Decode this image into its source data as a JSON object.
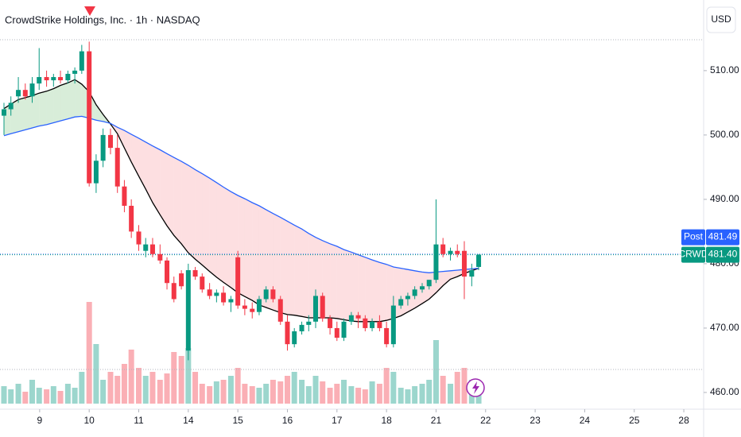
{
  "chart_data": {
    "type": "candlestick",
    "title": "CrowdStrike Holdings, Inc. · 1h · NASDAQ",
    "currency": "USD",
    "xlim": [
      -0.8,
      13.4
    ],
    "ylim": [
      457.4,
      514.8
    ],
    "xticks": [
      {
        "value": 0,
        "label": "9"
      },
      {
        "value": 1,
        "label": "10"
      },
      {
        "value": 2,
        "label": "11"
      },
      {
        "value": 3,
        "label": "14"
      },
      {
        "value": 4,
        "label": "15"
      },
      {
        "value": 5,
        "label": "16"
      },
      {
        "value": 6,
        "label": "17"
      },
      {
        "value": 7,
        "label": "18"
      },
      {
        "value": 8,
        "label": "21"
      },
      {
        "value": 9,
        "label": "22"
      },
      {
        "value": 10,
        "label": "23"
      },
      {
        "value": 11,
        "label": "24"
      },
      {
        "value": 12,
        "label": "25"
      },
      {
        "value": 13,
        "label": "28"
      }
    ],
    "yticks": [
      {
        "value": 460,
        "label": "460.00"
      },
      {
        "value": 470,
        "label": "470.00"
      },
      {
        "value": 480,
        "label": "480.00"
      },
      {
        "value": 490,
        "label": "490.00"
      },
      {
        "value": 500,
        "label": "500.00"
      },
      {
        "value": 510,
        "label": "510.00"
      }
    ],
    "up_color": "#089981",
    "down_color": "#f23645",
    "candles": {
      "t": [
        -0.72,
        -0.58,
        -0.43,
        -0.29,
        -0.15,
        -0.01,
        0.14,
        0.28,
        0.42,
        0.57,
        0.71,
        0.85,
        1.0,
        1.14,
        1.28,
        1.43,
        1.57,
        1.71,
        1.85,
        2.0,
        2.14,
        2.28,
        2.43,
        2.57,
        2.71,
        2.86,
        3.0,
        3.14,
        3.28,
        3.43,
        3.57,
        3.71,
        3.86,
        4.0,
        4.14,
        4.29,
        4.43,
        4.57,
        4.71,
        4.86,
        5.0,
        5.14,
        5.29,
        5.43,
        5.57,
        5.71,
        5.86,
        6.0,
        6.14,
        6.29,
        6.43,
        6.57,
        6.71,
        6.86,
        7.0,
        7.14,
        7.29,
        7.43,
        7.57,
        7.72,
        7.86,
        8.0,
        8.14,
        8.29,
        8.43,
        8.57,
        8.72,
        8.86
      ],
      "open": [
        503,
        504,
        506,
        507,
        506,
        508,
        509,
        508.5,
        509,
        508.5,
        509.5,
        510,
        513,
        492.5,
        496,
        500,
        498,
        492,
        489,
        485,
        482,
        483,
        481.5,
        480.5,
        477,
        478.5,
        466.5,
        479,
        478,
        476,
        475,
        475.5,
        474,
        481,
        473.5,
        473,
        472.5,
        474.5,
        476,
        474.5,
        471,
        467.5,
        469.5,
        470.5,
        471,
        475,
        471.5,
        470,
        468.5,
        471,
        472,
        471.5,
        470,
        471,
        470,
        467.5,
        473.5,
        474.5,
        475,
        476,
        476.5,
        477.5,
        483,
        481.5,
        482,
        482,
        478,
        479.5
      ],
      "high": [
        505,
        506,
        509,
        508,
        509,
        513.5,
        510,
        509.5,
        510,
        510,
        510.5,
        514,
        514.5,
        497,
        501,
        501,
        500,
        493,
        490,
        486,
        484,
        484,
        483,
        481,
        478,
        479,
        480,
        479.5,
        478.5,
        477,
        476,
        476.5,
        475,
        482,
        474.5,
        474,
        475,
        476.5,
        476.5,
        475,
        472,
        470,
        471,
        472,
        476,
        475.5,
        472,
        471,
        471.5,
        472.5,
        472.5,
        472,
        471.5,
        472,
        471,
        475,
        475,
        475.5,
        476.5,
        477,
        477.5,
        490,
        484,
        482.5,
        483,
        483.5,
        480,
        481.5
      ],
      "low": [
        500,
        503,
        505,
        505.5,
        505,
        507,
        507.5,
        507.5,
        508,
        508,
        508,
        509.5,
        492,
        491,
        495,
        497,
        491,
        488,
        484,
        482,
        481,
        481,
        480,
        476,
        474,
        476,
        465,
        477.5,
        475.5,
        474.5,
        474,
        473.5,
        472.5,
        473,
        472,
        471.5,
        472,
        474,
        474,
        470.5,
        466.5,
        467,
        469,
        469.5,
        470,
        471,
        469,
        468,
        468,
        470.5,
        470,
        469.5,
        469.5,
        469.5,
        467,
        467,
        473,
        473.5,
        474.5,
        475.5,
        476,
        477,
        481,
        480.5,
        481,
        474.5,
        476.5,
        479
      ],
      "close": [
        504,
        505,
        507,
        506,
        508,
        509,
        508.5,
        509,
        508.5,
        509.5,
        510,
        513,
        492.5,
        496,
        500,
        498,
        492,
        489,
        485,
        483,
        483,
        481.5,
        480.5,
        477,
        474.5,
        476.5,
        479,
        478,
        476,
        475,
        475.5,
        474,
        474.5,
        473.5,
        473,
        472.5,
        474.5,
        476,
        474.5,
        471,
        467.5,
        469.5,
        470.5,
        471,
        475,
        471.5,
        470,
        468.5,
        471,
        472,
        471.5,
        470,
        471,
        470,
        467.5,
        473.5,
        474.5,
        475,
        476,
        476.5,
        477.5,
        483,
        481.5,
        482,
        481.5,
        478,
        479,
        481.4
      ]
    },
    "overlays": [
      {
        "color": "#000000",
        "values": [
          504.1,
          504.8,
          505.5,
          505.8,
          506.1,
          506.5,
          506.8,
          507.2,
          507.7,
          508.1,
          508.6,
          507.9,
          506.7,
          504.7,
          503.2,
          501.7,
          500.2,
          498.0,
          495.8,
          493.6,
          491.6,
          489.5,
          487.6,
          485.9,
          484.4,
          483.1,
          481.7,
          480.7,
          479.8,
          478.8,
          477.9,
          477.1,
          476.3,
          475.5,
          474.9,
          474.3,
          473.6,
          473.2,
          472.8,
          472.4,
          472.1,
          472.0,
          471.8,
          471.6,
          471.6,
          471.6,
          471.6,
          471.5,
          471.3,
          471.1,
          471.0,
          471.0,
          471.0,
          471.0,
          471.2,
          471.5,
          471.9,
          472.5,
          473.1,
          473.8,
          474.5,
          475.5,
          476.6,
          477.6,
          478.0,
          478.5,
          478.9,
          479.3
        ]
      },
      {
        "color": "#2962ff",
        "values": [
          499.9,
          500.2,
          500.5,
          500.8,
          501.1,
          501.4,
          501.6,
          501.9,
          502.2,
          502.5,
          502.8,
          502.9,
          502.6,
          502.3,
          502.1,
          501.8,
          501.2,
          500.7,
          500.1,
          499.5,
          498.9,
          498.3,
          497.7,
          497.1,
          496.5,
          495.9,
          495.3,
          494.6,
          494.0,
          493.3,
          492.6,
          491.9,
          491.2,
          490.6,
          490.1,
          489.5,
          489.0,
          488.4,
          487.8,
          487.2,
          486.6,
          486.0,
          485.4,
          484.7,
          484.1,
          483.6,
          483.1,
          482.7,
          482.2,
          481.8,
          481.4,
          481.0,
          480.6,
          480.2,
          479.9,
          479.5,
          479.3,
          479.1,
          478.9,
          478.7,
          478.6,
          478.7,
          478.8,
          478.9,
          479.0,
          479.1,
          479.2,
          479.3
        ]
      }
    ],
    "volume": {
      "vlim": [
        0,
        160
      ],
      "values": [
        22,
        18,
        25,
        15,
        30,
        20,
        18,
        22,
        16,
        25,
        20,
        40,
        128,
        75,
        30,
        40,
        35,
        50,
        68,
        45,
        35,
        40,
        30,
        38,
        65,
        60,
        70,
        40,
        25,
        22,
        28,
        30,
        35,
        45,
        25,
        22,
        20,
        25,
        30,
        28,
        35,
        40,
        30,
        22,
        35,
        28,
        20,
        25,
        30,
        22,
        20,
        18,
        28,
        25,
        45,
        40,
        20,
        18,
        22,
        25,
        30,
        80,
        35,
        25,
        40,
        45,
        30,
        20
      ]
    },
    "price_tags": [
      {
        "label": "Post",
        "value": 481.49,
        "value_label": "481.49",
        "color": "#2962ff"
      },
      {
        "label": "CRWD",
        "value": 481.4,
        "value_label": "481.40",
        "color": "#089981"
      }
    ]
  }
}
